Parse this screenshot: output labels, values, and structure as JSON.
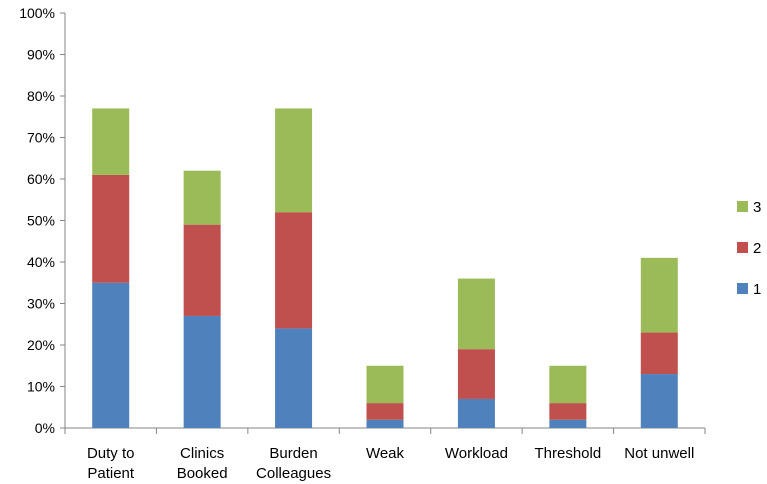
{
  "chart_data": {
    "type": "bar",
    "stacked": true,
    "categories": [
      "Duty to\nPatient",
      "Clinics\nBooked",
      "Burden\nColleagues",
      "Weak",
      "Workload",
      "Threshold",
      "Not unwell"
    ],
    "series": [
      {
        "name": "1",
        "values": [
          35,
          27,
          24,
          2,
          7,
          2,
          13
        ],
        "color": "#4f81bd"
      },
      {
        "name": "2",
        "values": [
          26,
          22,
          28,
          4,
          12,
          4,
          10
        ],
        "color": "#c0504d"
      },
      {
        "name": "3",
        "values": [
          16,
          13,
          25,
          9,
          17,
          9,
          18
        ],
        "color": "#9bbb59"
      }
    ],
    "ylim": [
      0,
      100
    ],
    "yticks": [
      "0%",
      "10%",
      "20%",
      "30%",
      "40%",
      "50%",
      "60%",
      "70%",
      "80%",
      "90%",
      "100%"
    ],
    "legend": {
      "position": "right",
      "order": [
        "3",
        "2",
        "1"
      ]
    },
    "grid": false
  }
}
